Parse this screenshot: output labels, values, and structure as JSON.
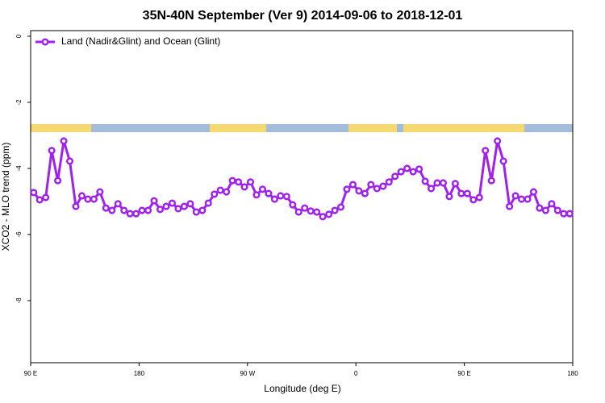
{
  "chart_data": {
    "type": "line",
    "title": "35N-40N September (Ver 9)   2014-09-06 to 2018-12-01",
    "x_label": "Longitude (deg E)",
    "y_label": "XCO2 - MLO trend (ppm)",
    "x": [
      92.5,
      97.5,
      102.5,
      107.5,
      112.5,
      117.5,
      122.5,
      127.5,
      132.5,
      137.5,
      142.5,
      147.5,
      152.5,
      157.5,
      162.5,
      167.5,
      172.5,
      177.5,
      182.5,
      187.5,
      192.5,
      197.5,
      202.5,
      207.5,
      212.5,
      217.5,
      222.5,
      227.5,
      232.5,
      237.5,
      242.5,
      247.5,
      252.5,
      257.5,
      262.5,
      267.5,
      272.5,
      277.5,
      282.5,
      287.5,
      292.5,
      297.5,
      302.5,
      307.5,
      312.5,
      317.5,
      322.5,
      327.5,
      332.5,
      337.5,
      342.5,
      347.5,
      352.5,
      357.5,
      362.5,
      367.5,
      372.5,
      377.5,
      382.5,
      387.5,
      392.5,
      397.5,
      402.5,
      407.5,
      412.5,
      417.5,
      422.5,
      427.5,
      432.5,
      437.5,
      442.5,
      447.5,
      452.5,
      457.5,
      462.5,
      467.5,
      472.5,
      477.5,
      482.5,
      487.5,
      492.5,
      497.5,
      502.5,
      507.5,
      512.5,
      517.5,
      522.5,
      527.5,
      532.5,
      537.5
    ],
    "series": [
      {
        "name": "Land (Nadir&Glint) and Ocean (Glint)",
        "color": "#a020f0",
        "values": [
          -4.73,
          -4.95,
          -4.88,
          -3.46,
          -4.37,
          -3.17,
          -3.78,
          -5.15,
          -4.83,
          -4.93,
          -4.93,
          -4.71,
          -5.2,
          -5.27,
          -5.07,
          -5.27,
          -5.37,
          -5.37,
          -5.27,
          -5.27,
          -4.98,
          -5.24,
          -5.15,
          -5.05,
          -5.22,
          -5.15,
          -5.07,
          -5.32,
          -5.27,
          -5.05,
          -4.78,
          -4.66,
          -4.71,
          -4.37,
          -4.41,
          -4.56,
          -4.41,
          -4.8,
          -4.63,
          -4.76,
          -4.93,
          -4.83,
          -4.85,
          -5.1,
          -5.32,
          -5.2,
          -5.29,
          -5.32,
          -5.46,
          -5.39,
          -5.27,
          -5.17,
          -4.63,
          -4.49,
          -4.68,
          -4.76,
          -4.49,
          -4.61,
          -4.54,
          -4.41,
          -4.24,
          -4.1,
          -4.0,
          -4.1,
          -4.02,
          -4.39,
          -4.61,
          -4.44,
          -4.44,
          -4.85,
          -4.46,
          -4.76,
          -4.76,
          -4.95,
          -4.88,
          -3.46,
          -4.37,
          -3.17,
          -3.78,
          -5.15,
          -4.83,
          -4.93,
          -4.93,
          -4.71,
          -5.2,
          -5.27,
          -5.07,
          -5.27,
          -5.37,
          -5.37
        ]
      }
    ],
    "xlim": [
      90,
      540
    ],
    "xticks": [
      {
        "value": 90,
        "label": "90 E"
      },
      {
        "value": 180,
        "label": "180"
      },
      {
        "value": 270,
        "label": "90 W"
      },
      {
        "value": 360,
        "label": "0"
      },
      {
        "value": 450,
        "label": "90 E"
      },
      {
        "value": 540,
        "label": "180"
      }
    ],
    "ylim": [
      -9.88,
      0.17
    ],
    "yticks": [
      0,
      -2,
      -4,
      -6,
      -8
    ],
    "legend": "top-left"
  }
}
